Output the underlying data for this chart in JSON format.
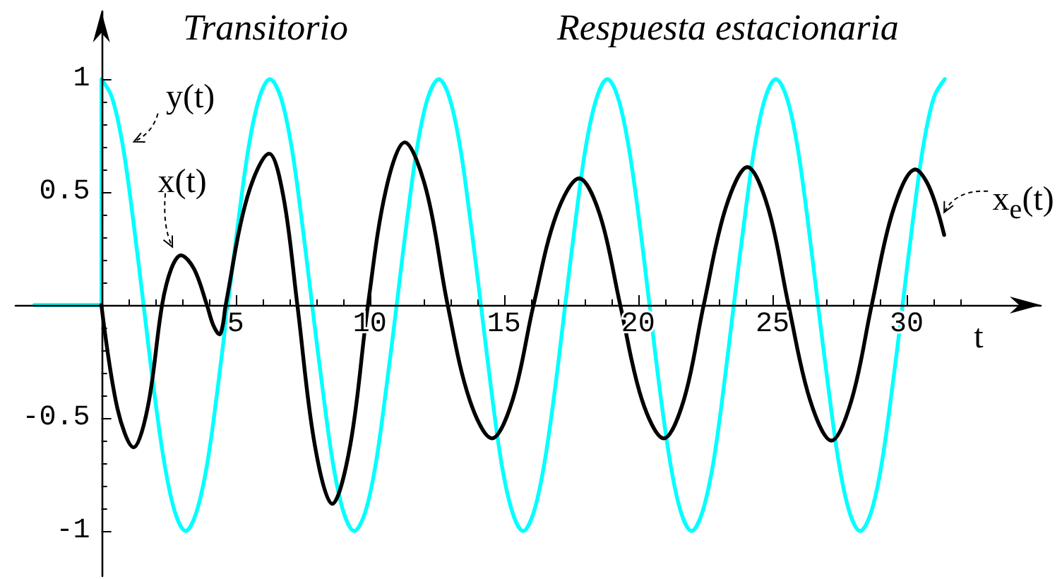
{
  "chart_data": {
    "type": "line",
    "xlabel": "t",
    "xlim": [
      -3.2,
      35
    ],
    "ylim": [
      -1.2,
      1.3
    ],
    "xticks": [
      {
        "value": 1,
        "label": null
      },
      {
        "value": 2,
        "label": null
      },
      {
        "value": 3,
        "label": null
      },
      {
        "value": 4,
        "label": null
      },
      5,
      {
        "value": 6,
        "label": null
      },
      {
        "value": 7,
        "label": null
      },
      {
        "value": 8,
        "label": null
      },
      {
        "value": 9,
        "label": null
      },
      10,
      {
        "value": 11,
        "label": null
      },
      {
        "value": 12,
        "label": null
      },
      {
        "value": 13,
        "label": null
      },
      {
        "value": 14,
        "label": null
      },
      15,
      {
        "value": 16,
        "label": null
      },
      {
        "value": 17,
        "label": null
      },
      {
        "value": 18,
        "label": null
      },
      {
        "value": 19,
        "label": null
      },
      20,
      {
        "value": 21,
        "label": null
      },
      {
        "value": 22,
        "label": null
      },
      {
        "value": 23,
        "label": null
      },
      {
        "value": 24,
        "label": null
      },
      25,
      {
        "value": 26,
        "label": null
      },
      {
        "value": 27,
        "label": null
      },
      {
        "value": 28,
        "label": null
      },
      {
        "value": 29,
        "label": null
      },
      30,
      {
        "value": 31,
        "label": null
      },
      {
        "value": 32,
        "label": null
      }
    ],
    "yticks": [
      -1,
      {
        "value": -0.9,
        "label": null
      },
      {
        "value": -0.8,
        "label": null
      },
      {
        "value": -0.7,
        "label": null
      },
      {
        "value": -0.6,
        "label": null
      },
      -0.5,
      {
        "value": -0.4,
        "label": null
      },
      {
        "value": -0.3,
        "label": null
      },
      {
        "value": -0.2,
        "label": null
      },
      {
        "value": -0.1,
        "label": null
      },
      {
        "value": 0.1,
        "label": null
      },
      {
        "value": 0.2,
        "label": null
      },
      {
        "value": 0.3,
        "label": null
      },
      {
        "value": 0.4,
        "label": null
      },
      0.5,
      {
        "value": 0.6,
        "label": null
      },
      {
        "value": 0.7,
        "label": null
      },
      {
        "value": 0.8,
        "label": null
      },
      {
        "value": 0.9,
        "label": null
      },
      1
    ],
    "marker": "none",
    "annotations": [
      "Transitorio",
      "Respuesta estacionaria",
      {
        "text": "y(t)",
        "x": 0.79,
        "y": 0.71
      },
      {
        "text": "x(t)",
        "x": 2.96,
        "y": 0.22
      },
      {
        "text": "x$_{e}$(t)",
        "x": 31.4,
        "y": 0.41
      }
    ],
    "series": [
      {
        "color": "#00ffff",
        "x": [
          -2.5,
          0,
          0,
          0.39,
          0.79,
          1.18,
          1.57,
          1.96,
          2.36,
          2.75,
          3.14,
          3.53,
          3.93,
          4.32,
          4.71,
          5.11,
          5.5,
          5.89,
          6.28,
          6.68,
          7.07,
          7.46,
          7.85,
          8.25,
          8.64,
          9.03,
          9.42,
          9.82,
          10.21,
          10.6,
          11,
          11.39,
          11.78,
          12.17,
          12.57,
          12.96,
          13.35,
          13.74,
          14.14,
          14.53,
          14.92,
          15.32,
          15.71,
          16.1,
          16.49,
          16.89,
          17.28,
          17.67,
          18.06,
          18.46,
          18.85,
          19.24,
          19.63,
          20.03,
          20.42,
          20.81,
          21.21,
          21.6,
          21.99,
          22.38,
          22.78,
          23.17,
          23.56,
          23.96,
          24.35,
          24.74,
          25.13,
          25.53,
          25.92,
          26.31,
          26.7,
          27.1,
          27.49,
          27.88,
          28.27,
          28.67,
          29.06,
          29.45,
          29.85,
          30.24,
          30.63,
          31.02,
          31.42
        ],
        "values": [
          0,
          0,
          1,
          0.92,
          0.71,
          0.38,
          0,
          -0.38,
          -0.71,
          -0.92,
          -1,
          -0.92,
          -0.71,
          -0.38,
          0,
          0.38,
          0.71,
          0.92,
          1,
          0.92,
          0.71,
          0.38,
          0,
          -0.38,
          -0.71,
          -0.92,
          -1,
          -0.92,
          -0.71,
          -0.38,
          0,
          0.38,
          0.71,
          0.92,
          1,
          0.92,
          0.71,
          0.38,
          0,
          -0.38,
          -0.71,
          -0.92,
          -1,
          -0.92,
          -0.71,
          -0.38,
          0,
          0.38,
          0.71,
          0.92,
          1,
          0.92,
          0.71,
          0.38,
          0,
          -0.38,
          -0.71,
          -0.92,
          -1,
          -0.92,
          -0.71,
          -0.38,
          0,
          0.38,
          0.71,
          0.92,
          1,
          0.92,
          0.71,
          0.38,
          0,
          -0.38,
          -0.71,
          -0.92,
          -1,
          -0.92,
          -0.71,
          -0.38,
          0,
          0.38,
          0.71,
          0.92,
          1
        ]
      },
      {
        "color": "#000000",
        "x": [
          0,
          0.6,
          1.2,
          1.73,
          2.26,
          2.6,
          2.96,
          3.45,
          3.93,
          4.17,
          4.4,
          4.52,
          4.63,
          5.44,
          6.25,
          6.78,
          7.3,
          7.95,
          8.6,
          9.27,
          9.93,
          10.6,
          11.3,
          12.1,
          12.9,
          13.72,
          14.55,
          15.32,
          16.1,
          16.95,
          17.8,
          18.57,
          19.33,
          20.14,
          20.95,
          21.7,
          22.44,
          23.26,
          24.07,
          24.84,
          25.6,
          26.4,
          27.2,
          27.95,
          28.7,
          29.5,
          30.33,
          30.85,
          31.4
        ],
        "values": [
          0,
          -0.46,
          -0.63,
          -0.45,
          0,
          0.16,
          0.22,
          0.16,
          0,
          -0.09,
          -0.13,
          -0.09,
          0,
          0.48,
          0.67,
          0.48,
          0,
          -0.62,
          -0.88,
          -0.62,
          0,
          0.51,
          0.72,
          0.51,
          0,
          -0.42,
          -0.59,
          -0.42,
          0,
          0.4,
          0.56,
          0.4,
          0,
          -0.42,
          -0.59,
          -0.42,
          0,
          0.43,
          0.61,
          0.43,
          0,
          -0.42,
          -0.6,
          -0.42,
          0,
          0.42,
          0.6,
          0.52,
          0.31
        ]
      }
    ]
  }
}
